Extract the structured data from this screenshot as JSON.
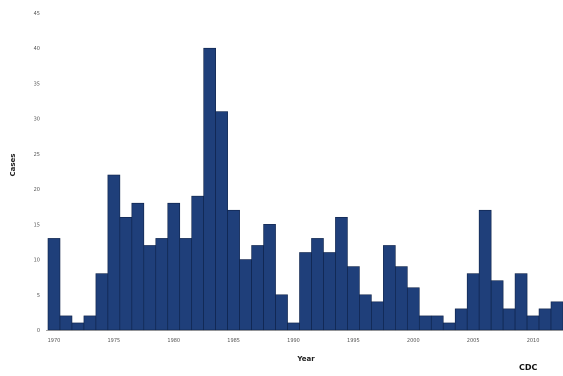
{
  "chart_data": {
    "type": "bar",
    "title": "",
    "xlabel": "Year",
    "ylabel": "Cases",
    "x": [
      1970,
      1971,
      1972,
      1973,
      1974,
      1975,
      1976,
      1977,
      1978,
      1979,
      1980,
      1981,
      1982,
      1983,
      1984,
      1985,
      1986,
      1987,
      1988,
      1989,
      1990,
      1991,
      1992,
      1993,
      1994,
      1995,
      1996,
      1997,
      1998,
      1999,
      2000,
      2001,
      2002,
      2003,
      2004,
      2005,
      2006,
      2007,
      2008,
      2009,
      2010,
      2011,
      2012
    ],
    "values": [
      13,
      2,
      1,
      2,
      8,
      22,
      16,
      18,
      12,
      13,
      18,
      13,
      19,
      40,
      31,
      17,
      10,
      12,
      15,
      5,
      1,
      11,
      13,
      11,
      16,
      9,
      5,
      4,
      12,
      9,
      6,
      2,
      2,
      1,
      3,
      8,
      17,
      7,
      3,
      8,
      2,
      3,
      4
    ],
    "ylim": [
      0,
      45
    ],
    "yticks": [
      0,
      5,
      10,
      15,
      20,
      25,
      30,
      35,
      40,
      45
    ],
    "xticks": [
      1970,
      1975,
      1980,
      1985,
      1990,
      1995,
      2000,
      2005,
      2010
    ],
    "bar_color": "#1f3f7a",
    "grid": false
  },
  "credit": "CDC"
}
